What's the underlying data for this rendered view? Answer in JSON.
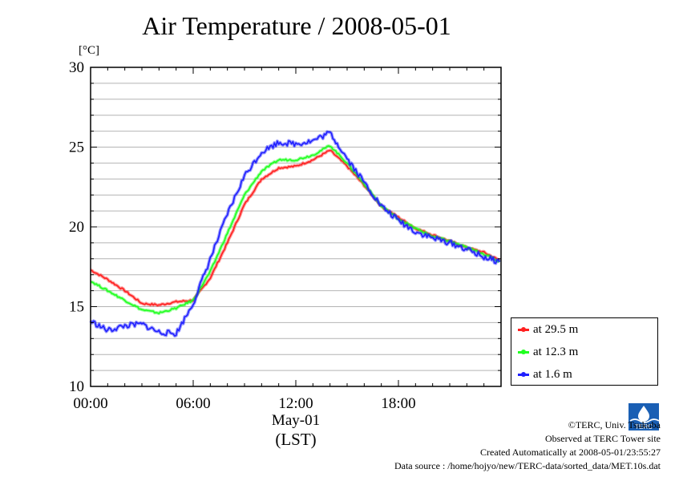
{
  "chart_data": {
    "type": "line",
    "title": "Air Temperature / 2008-05-01",
    "ylabel": "[°C]",
    "xlabel": "(LST)",
    "x_date_label": "May-01",
    "ylim": [
      10,
      30
    ],
    "xlim": [
      "00:00",
      "24:00"
    ],
    "yticks": [
      "10",
      "15",
      "20",
      "25",
      "30"
    ],
    "xticks": [
      "00:00",
      "06:00",
      "12:00",
      "18:00"
    ],
    "grid": true,
    "legend_position": "bottom-right-outside",
    "x": [
      "00:00",
      "01:00",
      "02:00",
      "03:00",
      "04:00",
      "05:00",
      "06:00",
      "07:00",
      "08:00",
      "09:00",
      "10:00",
      "11:00",
      "12:00",
      "13:00",
      "14:00",
      "15:00",
      "16:00",
      "17:00",
      "18:00",
      "19:00",
      "20:00",
      "21:00",
      "22:00",
      "23:00",
      "23:55"
    ],
    "series": [
      {
        "name": "at 29.5 m",
        "color": "#ff2020",
        "values": [
          17.3,
          16.7,
          16.0,
          15.2,
          15.1,
          15.3,
          15.4,
          16.8,
          19.0,
          21.4,
          23.0,
          23.7,
          23.8,
          24.2,
          24.8,
          23.8,
          22.6,
          21.3,
          20.6,
          19.9,
          19.5,
          19.1,
          18.7,
          18.4,
          17.9
        ]
      },
      {
        "name": "at 12.3 m",
        "color": "#20ff20",
        "values": [
          16.6,
          16.0,
          15.4,
          14.8,
          14.6,
          14.9,
          15.4,
          17.2,
          19.6,
          22.0,
          23.5,
          24.2,
          24.2,
          24.5,
          25.1,
          24.0,
          22.7,
          21.3,
          20.5,
          19.9,
          19.4,
          19.1,
          18.7,
          18.3,
          17.8
        ]
      },
      {
        "name": "at 1.6 m",
        "color": "#2020ff",
        "values": [
          14.1,
          13.5,
          13.8,
          13.9,
          13.4,
          13.3,
          15.2,
          18.0,
          20.8,
          23.2,
          24.7,
          25.3,
          25.2,
          25.4,
          25.9,
          24.3,
          22.8,
          21.3,
          20.4,
          19.7,
          19.3,
          19.0,
          18.6,
          18.1,
          17.8
        ]
      }
    ]
  },
  "footer": {
    "copyright": "©TERC, Univ. Tsukuba",
    "observed": "Observed at TERC Tower site",
    "created": "Created Automatically at 2008-05-01/23:55:27",
    "source": "Data source : /home/hojyo/new/TERC-data/sorted_data/MET.10s.dat",
    "logo_text": "TERC"
  }
}
